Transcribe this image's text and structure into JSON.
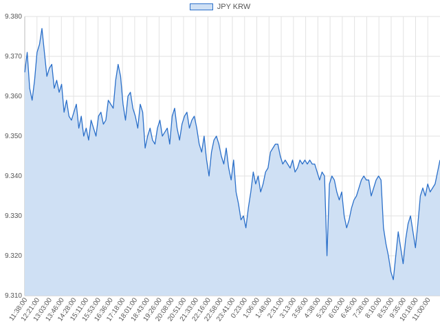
{
  "chart_data": {
    "type": "area",
    "title": "",
    "xlabel": "",
    "ylabel": "",
    "ylim": [
      9.31,
      9.38
    ],
    "y_ticks": [
      "9.310",
      "9.320",
      "9.330",
      "9.340",
      "9.350",
      "9.360",
      "9.370",
      "9.380"
    ],
    "grid": true,
    "legend_position": "top-center",
    "series_color": "#2a6fc9",
    "fill_color": "#cfe0f4",
    "series": [
      {
        "name": "JPY KRW",
        "values": [
          9.366,
          9.371,
          9.362,
          9.359,
          9.364,
          9.371,
          9.373,
          9.377,
          9.371,
          9.365,
          9.367,
          9.368,
          9.362,
          9.364,
          9.361,
          9.363,
          9.356,
          9.359,
          9.355,
          9.354,
          9.356,
          9.358,
          9.352,
          9.355,
          9.35,
          9.352,
          9.349,
          9.354,
          9.352,
          9.35,
          9.355,
          9.356,
          9.353,
          9.354,
          9.359,
          9.358,
          9.357,
          9.364,
          9.368,
          9.365,
          9.358,
          9.354,
          9.36,
          9.361,
          9.357,
          9.355,
          9.352,
          9.358,
          9.356,
          9.347,
          9.35,
          9.352,
          9.349,
          9.348,
          9.352,
          9.354,
          9.35,
          9.351,
          9.352,
          9.348,
          9.355,
          9.357,
          9.352,
          9.349,
          9.353,
          9.355,
          9.356,
          9.352,
          9.354,
          9.355,
          9.352,
          9.348,
          9.346,
          9.35,
          9.344,
          9.34,
          9.346,
          9.349,
          9.35,
          9.348,
          9.345,
          9.343,
          9.347,
          9.342,
          9.339,
          9.344,
          9.336,
          9.333,
          9.329,
          9.33,
          9.327,
          9.332,
          9.336,
          9.341,
          9.338,
          9.34,
          9.336,
          9.338,
          9.341,
          9.342,
          9.346,
          9.347,
          9.348,
          9.348,
          9.345,
          9.343,
          9.344,
          9.343,
          9.342,
          9.344,
          9.341,
          9.342,
          9.344,
          9.343,
          9.344,
          9.343,
          9.344,
          9.343,
          9.343,
          9.341,
          9.339,
          9.341,
          9.34,
          9.32,
          9.338,
          9.34,
          9.339,
          9.336,
          9.334,
          9.336,
          9.33,
          9.327,
          9.329,
          9.332,
          9.334,
          9.335,
          9.337,
          9.339,
          9.34,
          9.339,
          9.339,
          9.335,
          9.337,
          9.339,
          9.34,
          9.339,
          9.327,
          9.323,
          9.32,
          9.316,
          9.314,
          9.32,
          9.326,
          9.322,
          9.318,
          9.324,
          9.328,
          9.33,
          9.326,
          9.322,
          9.328,
          9.335,
          9.337,
          9.335,
          9.338,
          9.336,
          9.337,
          9.338,
          9.341,
          9.344
        ]
      }
    ],
    "x_tick_labels": [
      "11:38:00",
      "12:21:00",
      "13:03:00",
      "13:46:00",
      "14:28:00",
      "15:11:00",
      "15:53:00",
      "16:36:00",
      "17:18:00",
      "18:01:00",
      "18:43:00",
      "19:26:00",
      "20:08:00",
      "20:51:00",
      "21:33:00",
      "22:16:00",
      "22:58:00",
      "23:41:00",
      "0:23:00",
      "1:06:00",
      "1:48:00",
      "2:31:00",
      "3:13:00",
      "3:56:00",
      "4:38:00",
      "5:20:00",
      "6:03:00",
      "6:45:00",
      "7:28:00",
      "8:10:00",
      "8:53:00",
      "9:35:00",
      "10:18:00",
      "11:00:00"
    ]
  }
}
